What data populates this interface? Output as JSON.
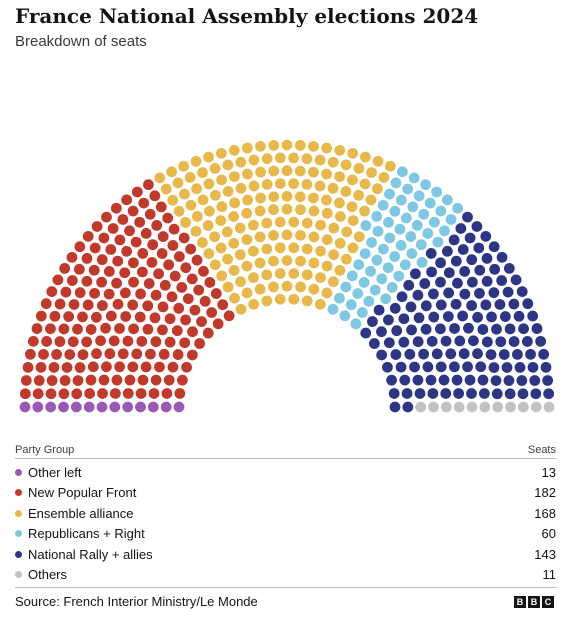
{
  "header": {
    "title": "France National Assembly elections 2024",
    "subtitle": "Breakdown of seats"
  },
  "table": {
    "col_party": "Party Group",
    "col_seats": "Seats",
    "rows": [
      {
        "party": "Other left",
        "seats": "13",
        "color": "#9b59b6"
      },
      {
        "party": "New Popular Front",
        "seats": "182",
        "color": "#c0392b"
      },
      {
        "party": "Ensemble alliance",
        "seats": "168",
        "color": "#e8b84b"
      },
      {
        "party": "Republicans + Right",
        "seats": "60",
        "color": "#7ec8e3"
      },
      {
        "party": "National Rally + allies",
        "seats": "143",
        "color": "#2d3585"
      },
      {
        "party": "Others",
        "seats": "11",
        "color": "#c2c2c2"
      }
    ]
  },
  "footer": {
    "source": "Source: French Interior Ministry/Le Monde",
    "logo": [
      "B",
      "B",
      "C"
    ]
  },
  "chart_data": {
    "type": "hemicycle",
    "total_seats": 577,
    "series": [
      {
        "name": "Other left",
        "value": 13,
        "color": "#9b59b6"
      },
      {
        "name": "New Popular Front",
        "value": 182,
        "color": "#c0392b"
      },
      {
        "name": "Ensemble alliance",
        "value": 168,
        "color": "#e8b84b"
      },
      {
        "name": "Republicans + Right",
        "value": 60,
        "color": "#7ec8e3"
      },
      {
        "name": "National Rally + allies",
        "value": 143,
        "color": "#2d3585"
      },
      {
        "name": "Others",
        "value": 11,
        "color": "#c2c2c2"
      }
    ]
  }
}
